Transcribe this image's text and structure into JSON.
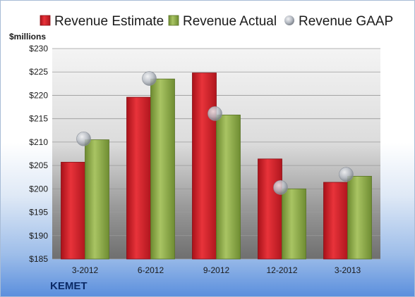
{
  "chart_data": {
    "type": "bar",
    "ylabel": "$millions",
    "company": "KEMET",
    "categories": [
      "3-2012",
      "6-2012",
      "9-2012",
      "12-2012",
      "3-2013"
    ],
    "series": [
      {
        "name": "Revenue Estimate",
        "kind": "bar",
        "color": "#d0202a",
        "values": [
          205.7,
          219.6,
          224.8,
          206.4,
          201.4
        ]
      },
      {
        "name": "Revenue Actual",
        "kind": "bar",
        "color": "#8fae4a",
        "values": [
          210.5,
          223.5,
          215.8,
          200.0,
          202.7
        ]
      },
      {
        "name": "Revenue GAAP",
        "kind": "marker",
        "color": "#b7bcc4",
        "values": [
          210.7,
          223.6,
          216.1,
          200.3,
          203.1
        ]
      }
    ],
    "ylim": [
      185,
      230
    ],
    "yticks": [
      "$185",
      "$190",
      "$195",
      "$200",
      "$205",
      "$210",
      "$215",
      "$220",
      "$225",
      "$230"
    ],
    "legend_position": "top",
    "grid": true
  }
}
